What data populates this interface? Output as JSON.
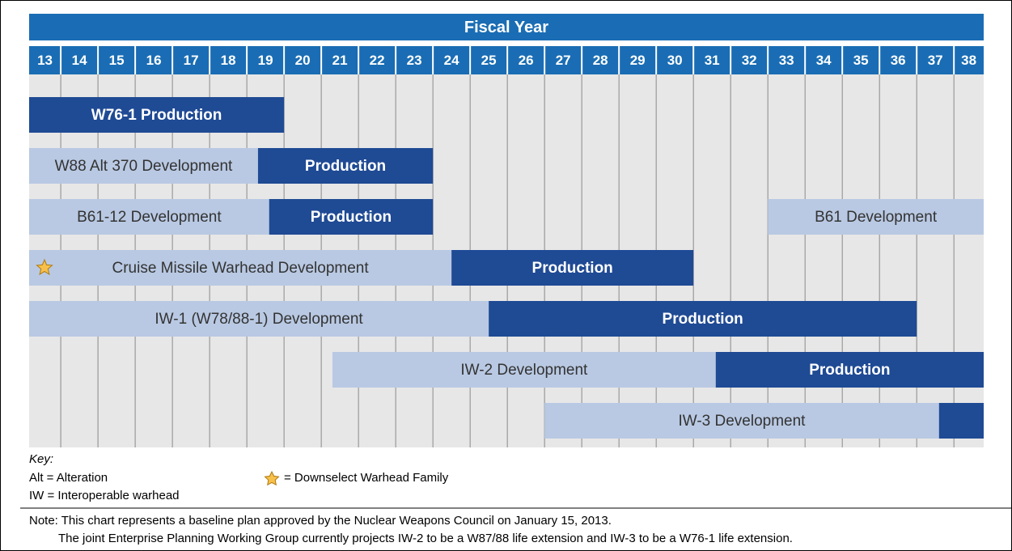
{
  "chart_data": {
    "type": "gantt",
    "title": "Fiscal Year",
    "categories": [
      "13",
      "14",
      "15",
      "16",
      "17",
      "18",
      "19",
      "20",
      "21",
      "22",
      "23",
      "24",
      "25",
      "26",
      "27",
      "28",
      "29",
      "30",
      "31",
      "32",
      "33",
      "34",
      "35",
      "36",
      "37",
      "38"
    ],
    "category_starts": [
      13,
      14,
      15,
      16,
      17,
      18,
      19,
      20,
      21,
      22,
      23,
      24,
      25,
      26,
      27,
      28,
      29,
      30,
      31,
      32,
      33,
      34,
      35,
      36,
      37,
      38
    ],
    "xlim": [
      13.15,
      38.8
    ],
    "colors": {
      "development": "#b9c9e3",
      "production": "#1f4a94",
      "header": "#1a6db4",
      "grid": "#e7e7e7"
    },
    "rows": [
      {
        "segments": [
          {
            "label": "W76-1 Production",
            "phase": "production",
            "start": 13.15,
            "end": 20.0
          }
        ]
      },
      {
        "segments": [
          {
            "label": "W88 Alt 370 Development",
            "phase": "development",
            "start": 13.15,
            "end": 19.3
          },
          {
            "label": "Production",
            "phase": "production",
            "start": 19.3,
            "end": 24.0
          }
        ]
      },
      {
        "segments": [
          {
            "label": "B61-12 Development",
            "phase": "development",
            "start": 13.15,
            "end": 19.6
          },
          {
            "label": "Production",
            "phase": "production",
            "start": 19.6,
            "end": 24.0
          },
          {
            "label": "B61 Development",
            "phase": "development",
            "start": 33.0,
            "end": 38.8
          }
        ]
      },
      {
        "marker": "star",
        "segments": [
          {
            "label": "Cruise Missile Warhead Development",
            "phase": "development",
            "start": 13.15,
            "end": 24.5
          },
          {
            "label": "Production",
            "phase": "production",
            "start": 24.5,
            "end": 31.0
          }
        ]
      },
      {
        "segments": [
          {
            "label": "IW-1 (W78/88-1) Development",
            "phase": "development",
            "start": 13.15,
            "end": 25.5
          },
          {
            "label": "Production",
            "phase": "production",
            "start": 25.5,
            "end": 37.0
          }
        ]
      },
      {
        "segments": [
          {
            "label": "IW-2 Development",
            "phase": "development",
            "start": 21.3,
            "end": 31.6
          },
          {
            "label": "Production",
            "phase": "production",
            "start": 31.6,
            "end": 38.8
          }
        ]
      },
      {
        "segments": [
          {
            "label": "IW-3 Development",
            "phase": "development",
            "start": 27.0,
            "end": 37.6
          },
          {
            "phase": "production",
            "start": 37.6,
            "end": 38.8
          }
        ]
      }
    ]
  },
  "key": {
    "heading": "Key:",
    "items": [
      "Alt = Alteration",
      "IW = Interoperable warhead"
    ],
    "star_item": "= Downselect Warhead Family"
  },
  "note": [
    "Note: This chart represents a baseline plan approved by the Nuclear Weapons Council on January 15, 2013.",
    "The joint Enterprise Planning Working Group currently projects IW-2 to be a W87/88 life extension and IW-3 to be a W76-1 life extension."
  ]
}
